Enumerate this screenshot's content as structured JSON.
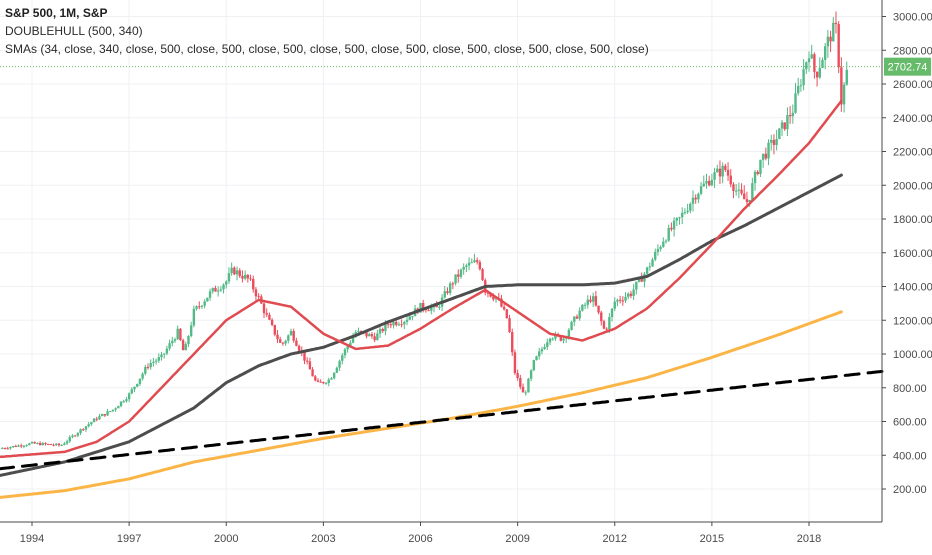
{
  "legend": {
    "title": "S&P 500, 1M, S&P",
    "indicator": "DOUBLEHULL (500, 340)",
    "smas": "SMAs (34, close, 340, close, 500, close, 500, close, 500, close, 500, close, 500, close, 500, close, 500, close, 500, close)"
  },
  "price_badge": "2702.74",
  "chart_data": {
    "type": "candlestick-with-lines",
    "x_ticks": [
      "1994",
      "1997",
      "2000",
      "2003",
      "2006",
      "2009",
      "2012",
      "2015",
      "2018"
    ],
    "y_ticks": [
      "200.00",
      "400.00",
      "600.00",
      "800.00",
      "1000.00",
      "1200.00",
      "1400.00",
      "1600.00",
      "1800.00",
      "2000.00",
      "2200.00",
      "2400.00",
      "2600.00",
      "2800.00",
      "3000.00"
    ],
    "xlim": [
      1993.0,
      2020.4
    ],
    "ylim": [
      60,
      3060
    ],
    "grid": true,
    "last_price": 2702.74,
    "colors": {
      "up": "#53b987",
      "down": "#eb4d5c",
      "sma34": "#e04b50",
      "sma340": "#4d4d4d",
      "sma500": "#fbb546",
      "hull": "#000000",
      "badge": "#66bb6a"
    },
    "price_anchors": [
      [
        1993.0,
        440
      ],
      [
        1994.0,
        470
      ],
      [
        1994.9,
        459
      ],
      [
        1995.5,
        550
      ],
      [
        1996.0,
        620
      ],
      [
        1996.5,
        670
      ],
      [
        1997.0,
        760
      ],
      [
        1997.6,
        940
      ],
      [
        1998.0,
        980
      ],
      [
        1998.5,
        1130
      ],
      [
        1998.7,
        1000
      ],
      [
        1999.0,
        1250
      ],
      [
        1999.5,
        1360
      ],
      [
        2000.0,
        1430
      ],
      [
        2000.2,
        1500
      ],
      [
        2000.7,
        1440
      ],
      [
        2001.0,
        1330
      ],
      [
        2001.3,
        1200
      ],
      [
        2001.7,
        1050
      ],
      [
        2002.0,
        1130
      ],
      [
        2002.5,
        940
      ],
      [
        2002.8,
        820
      ],
      [
        2003.2,
        850
      ],
      [
        2003.6,
        1000
      ],
      [
        2004.0,
        1130
      ],
      [
        2004.6,
        1100
      ],
      [
        2005.0,
        1180
      ],
      [
        2005.5,
        1200
      ],
      [
        2006.0,
        1280
      ],
      [
        2006.5,
        1270
      ],
      [
        2007.0,
        1430
      ],
      [
        2007.4,
        1520
      ],
      [
        2007.8,
        1550
      ],
      [
        2008.0,
        1380
      ],
      [
        2008.4,
        1320
      ],
      [
        2008.7,
        1200
      ],
      [
        2008.9,
        900
      ],
      [
        2009.2,
        750
      ],
      [
        2009.5,
        950
      ],
      [
        2010.0,
        1110
      ],
      [
        2010.4,
        1090
      ],
      [
        2010.9,
        1250
      ],
      [
        2011.3,
        1340
      ],
      [
        2011.7,
        1130
      ],
      [
        2012.0,
        1310
      ],
      [
        2012.5,
        1360
      ],
      [
        2013.0,
        1500
      ],
      [
        2013.5,
        1680
      ],
      [
        2014.0,
        1800
      ],
      [
        2014.5,
        1950
      ],
      [
        2015.0,
        2050
      ],
      [
        2015.4,
        2100
      ],
      [
        2015.8,
        1950
      ],
      [
        2016.1,
        1900
      ],
      [
        2016.5,
        2150
      ],
      [
        2017.0,
        2280
      ],
      [
        2017.5,
        2450
      ],
      [
        2018.0,
        2800
      ],
      [
        2018.2,
        2650
      ],
      [
        2018.7,
        2910
      ],
      [
        2018.85,
        2920
      ],
      [
        2019.0,
        2500
      ],
      [
        2019.2,
        2702.74
      ]
    ],
    "sma34_anchors": [
      [
        1993.0,
        390
      ],
      [
        1995.0,
        420
      ],
      [
        1996.0,
        480
      ],
      [
        1997.0,
        600
      ],
      [
        1998.0,
        800
      ],
      [
        1999.0,
        1000
      ],
      [
        2000.0,
        1200
      ],
      [
        2001.0,
        1320
      ],
      [
        2002.0,
        1280
      ],
      [
        2003.0,
        1120
      ],
      [
        2004.0,
        1030
      ],
      [
        2005.0,
        1050
      ],
      [
        2006.0,
        1150
      ],
      [
        2007.0,
        1270
      ],
      [
        2008.0,
        1380
      ],
      [
        2009.0,
        1250
      ],
      [
        2010.0,
        1120
      ],
      [
        2011.0,
        1080
      ],
      [
        2012.0,
        1150
      ],
      [
        2013.0,
        1270
      ],
      [
        2014.0,
        1450
      ],
      [
        2015.0,
        1650
      ],
      [
        2016.0,
        1860
      ],
      [
        2017.0,
        2050
      ],
      [
        2018.0,
        2250
      ],
      [
        2019.0,
        2500
      ]
    ],
    "sma340_anchors": [
      [
        1993.0,
        280
      ],
      [
        1995.0,
        360
      ],
      [
        1997.0,
        480
      ],
      [
        1999.0,
        680
      ],
      [
        2000.0,
        830
      ],
      [
        2001.0,
        930
      ],
      [
        2002.0,
        1000
      ],
      [
        2003.0,
        1040
      ],
      [
        2004.0,
        1110
      ],
      [
        2005.0,
        1190
      ],
      [
        2006.0,
        1260
      ],
      [
        2007.0,
        1330
      ],
      [
        2008.0,
        1400
      ],
      [
        2009.0,
        1410
      ],
      [
        2010.0,
        1410
      ],
      [
        2011.0,
        1410
      ],
      [
        2012.0,
        1420
      ],
      [
        2013.0,
        1460
      ],
      [
        2014.0,
        1560
      ],
      [
        2015.0,
        1670
      ],
      [
        2016.0,
        1760
      ],
      [
        2017.0,
        1860
      ],
      [
        2018.0,
        1960
      ],
      [
        2019.0,
        2060
      ]
    ],
    "sma500_anchors": [
      [
        1993.0,
        150
      ],
      [
        1995.0,
        190
      ],
      [
        1997.0,
        260
      ],
      [
        1999.0,
        360
      ],
      [
        2001.0,
        430
      ],
      [
        2003.0,
        500
      ],
      [
        2005.0,
        560
      ],
      [
        2007.0,
        620
      ],
      [
        2009.0,
        690
      ],
      [
        2011.0,
        770
      ],
      [
        2013.0,
        860
      ],
      [
        2015.0,
        980
      ],
      [
        2017.0,
        1110
      ],
      [
        2019.0,
        1250
      ]
    ],
    "hull_anchors": [
      [
        1993.0,
        320
      ],
      [
        2020.4,
        900
      ]
    ]
  }
}
